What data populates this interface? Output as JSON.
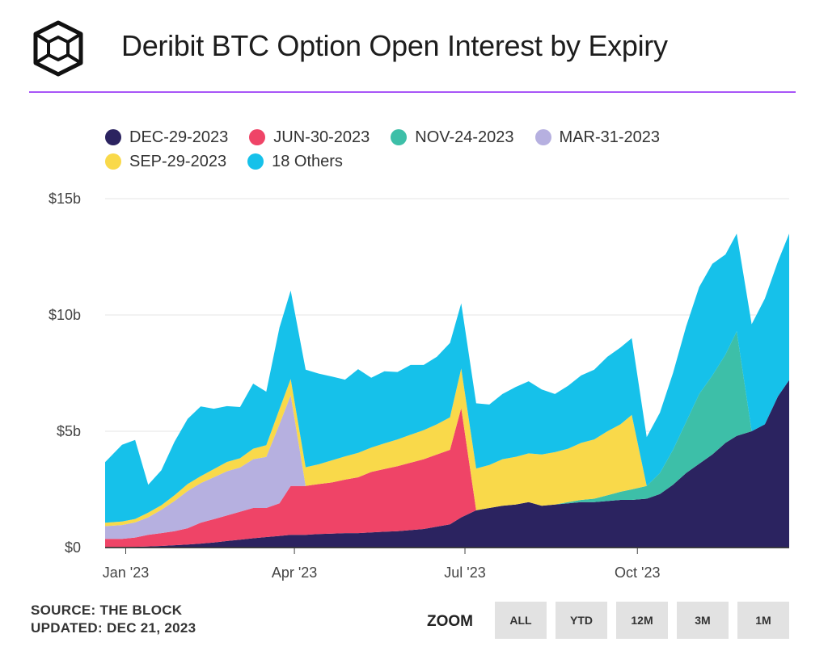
{
  "header": {
    "title": "Deribit BTC Option Open Interest by Expiry",
    "accent_color": "#a855f7",
    "logo_icon": "the-block-cube-icon"
  },
  "footer": {
    "source": "SOURCE: THE BLOCK",
    "updated": "UPDATED: DEC 21, 2023",
    "zoom_label": "ZOOM",
    "zoom_buttons": [
      "ALL",
      "YTD",
      "12M",
      "3M",
      "1M"
    ]
  },
  "chart_data": {
    "type": "area",
    "stacked": true,
    "title": "Deribit BTC Option Open Interest by Expiry",
    "xlabel": "",
    "ylabel": "",
    "ylim": [
      0,
      15
    ],
    "y_unit": "$b",
    "y_ticks": [
      0,
      5,
      10,
      15
    ],
    "y_tick_labels": [
      "$0",
      "$5b",
      "$10b",
      "$15b"
    ],
    "x_ticks": [
      "2023-01-01",
      "2023-04-01",
      "2023-07-01",
      "2023-10-01"
    ],
    "x_tick_labels": [
      "Jan '23",
      "Apr '23",
      "Jul '23",
      "Oct '23"
    ],
    "x_range": [
      "2022-12-21",
      "2023-12-21"
    ],
    "grid": true,
    "legend_position": "top",
    "x": [
      "2022-12-21",
      "2022-12-30",
      "2023-01-06",
      "2023-01-13",
      "2023-01-20",
      "2023-01-27",
      "2023-02-03",
      "2023-02-10",
      "2023-02-17",
      "2023-02-24",
      "2023-03-03",
      "2023-03-10",
      "2023-03-17",
      "2023-03-24",
      "2023-03-30",
      "2023-04-07",
      "2023-04-14",
      "2023-04-21",
      "2023-04-28",
      "2023-05-05",
      "2023-05-12",
      "2023-05-19",
      "2023-05-26",
      "2023-06-02",
      "2023-06-09",
      "2023-06-16",
      "2023-06-23",
      "2023-06-29",
      "2023-07-07",
      "2023-07-14",
      "2023-07-21",
      "2023-07-28",
      "2023-08-04",
      "2023-08-11",
      "2023-08-18",
      "2023-08-25",
      "2023-09-01",
      "2023-09-08",
      "2023-09-15",
      "2023-09-22",
      "2023-09-28",
      "2023-10-06",
      "2023-10-13",
      "2023-10-20",
      "2023-10-27",
      "2023-11-03",
      "2023-11-10",
      "2023-11-17",
      "2023-11-23",
      "2023-12-01",
      "2023-12-08",
      "2023-12-15",
      "2023-12-21"
    ],
    "series": [
      {
        "name": "DEC-29-2023",
        "color": "#2b2360",
        "values": [
          0.02,
          0.02,
          0.03,
          0.05,
          0.07,
          0.1,
          0.13,
          0.17,
          0.22,
          0.28,
          0.34,
          0.4,
          0.45,
          0.5,
          0.55,
          0.55,
          0.58,
          0.6,
          0.62,
          0.62,
          0.65,
          0.68,
          0.7,
          0.75,
          0.8,
          0.9,
          1.0,
          1.3,
          1.6,
          1.7,
          1.8,
          1.85,
          1.95,
          1.8,
          1.85,
          1.9,
          1.95,
          1.95,
          2.0,
          2.05,
          2.05,
          2.1,
          2.3,
          2.7,
          3.2,
          3.6,
          4.0,
          4.5,
          4.8,
          5.0,
          5.3,
          6.5,
          7.2
        ]
      },
      {
        "name": "JUN-30-2023",
        "color": "#ef4467",
        "values": [
          0.35,
          0.35,
          0.4,
          0.5,
          0.55,
          0.6,
          0.7,
          0.9,
          1.0,
          1.1,
          1.2,
          1.3,
          1.25,
          1.4,
          2.1,
          2.1,
          2.15,
          2.2,
          2.3,
          2.4,
          2.6,
          2.7,
          2.8,
          2.9,
          3.0,
          3.1,
          3.2,
          4.7,
          0,
          0,
          0,
          0,
          0,
          0,
          0,
          0,
          0,
          0,
          0,
          0,
          0,
          0,
          0,
          0,
          0,
          0,
          0,
          0,
          0,
          0,
          0,
          0,
          0
        ]
      },
      {
        "name": "NOV-24-2023",
        "color": "#3dbfa8",
        "values": [
          0,
          0,
          0,
          0,
          0,
          0,
          0,
          0,
          0,
          0,
          0,
          0,
          0,
          0,
          0,
          0,
          0,
          0,
          0,
          0,
          0,
          0,
          0,
          0,
          0,
          0,
          0,
          0,
          0,
          0,
          0,
          0,
          0,
          0,
          0,
          0.05,
          0.1,
          0.15,
          0.25,
          0.35,
          0.45,
          0.55,
          0.9,
          1.5,
          2.2,
          3.0,
          3.4,
          3.8,
          4.5,
          0,
          0,
          0,
          0
        ]
      },
      {
        "name": "MAR-31-2023",
        "color": "#b6b0e0",
        "values": [
          0.55,
          0.6,
          0.65,
          0.75,
          1.0,
          1.3,
          1.6,
          1.7,
          1.8,
          1.9,
          1.9,
          2.1,
          2.2,
          3.4,
          3.9,
          0,
          0,
          0,
          0,
          0,
          0,
          0,
          0,
          0,
          0,
          0,
          0,
          0,
          0,
          0,
          0,
          0,
          0,
          0,
          0,
          0,
          0,
          0,
          0,
          0,
          0,
          0,
          0,
          0,
          0,
          0,
          0,
          0,
          0,
          0,
          0,
          0,
          0
        ]
      },
      {
        "name": "SEP-29-2023",
        "color": "#f9d94a",
        "values": [
          0.15,
          0.15,
          0.15,
          0.2,
          0.2,
          0.25,
          0.3,
          0.3,
          0.35,
          0.4,
          0.4,
          0.45,
          0.5,
          0.65,
          0.7,
          0.8,
          0.85,
          0.95,
          1.0,
          1.05,
          1.05,
          1.1,
          1.15,
          1.2,
          1.25,
          1.3,
          1.4,
          1.7,
          1.8,
          1.85,
          2.0,
          2.05,
          2.1,
          2.2,
          2.25,
          2.3,
          2.45,
          2.55,
          2.75,
          2.9,
          3.2,
          0,
          0,
          0,
          0,
          0,
          0,
          0,
          0,
          0,
          0,
          0,
          0
        ]
      },
      {
        "name": "18 Others",
        "color": "#16c1ea",
        "values": [
          2.6,
          3.3,
          3.4,
          1.2,
          1.5,
          2.3,
          2.8,
          3.0,
          2.6,
          2.4,
          2.2,
          2.8,
          2.3,
          3.5,
          3.8,
          4.2,
          3.9,
          3.6,
          3.3,
          3.6,
          3.0,
          3.1,
          2.9,
          3.0,
          2.8,
          2.9,
          3.2,
          2.8,
          2.8,
          2.6,
          2.8,
          3.0,
          3.1,
          2.8,
          2.5,
          2.7,
          2.9,
          3.0,
          3.2,
          3.3,
          3.3,
          2.1,
          2.6,
          3.3,
          4.1,
          4.6,
          4.8,
          4.3,
          4.2,
          4.6,
          5.4,
          5.8,
          6.3
        ]
      }
    ]
  }
}
